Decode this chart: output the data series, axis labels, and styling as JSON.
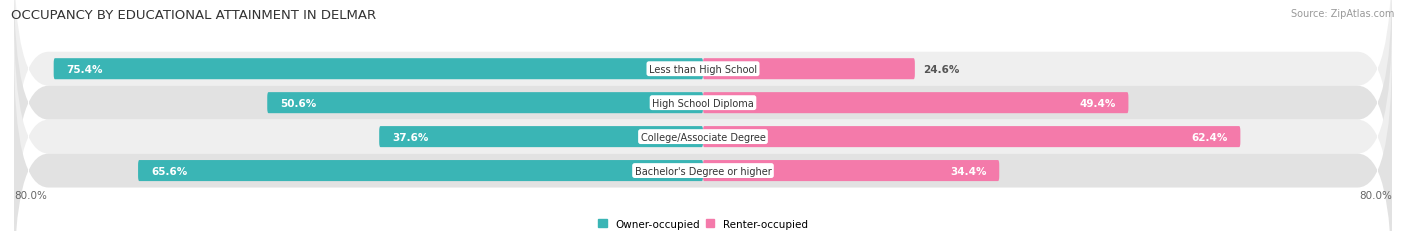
{
  "title": "OCCUPANCY BY EDUCATIONAL ATTAINMENT IN DELMAR",
  "source": "Source: ZipAtlas.com",
  "categories": [
    "Less than High School",
    "High School Diploma",
    "College/Associate Degree",
    "Bachelor's Degree or higher"
  ],
  "owner_values": [
    75.4,
    50.6,
    37.6,
    65.6
  ],
  "renter_values": [
    24.6,
    49.4,
    62.4,
    34.4
  ],
  "owner_color": "#3ab5b5",
  "renter_color": "#f47aaa",
  "owner_label": "Owner-occupied",
  "renter_label": "Renter-occupied",
  "xlim_left": -80.0,
  "xlim_right": 80.0,
  "x_left_label": "80.0%",
  "x_right_label": "80.0%",
  "bar_height": 0.62,
  "row_bg_light": "#efefef",
  "row_bg_dark": "#e2e2e2",
  "background_color": "#ffffff",
  "title_fontsize": 9.5,
  "label_fontsize": 7.5,
  "axis_fontsize": 7.5,
  "source_fontsize": 7,
  "owner_text_color_inside": "#ffffff",
  "renter_text_color_inside": "#ffffff",
  "renter_text_color_outside": "#555555",
  "cat_text_color": "#333333"
}
